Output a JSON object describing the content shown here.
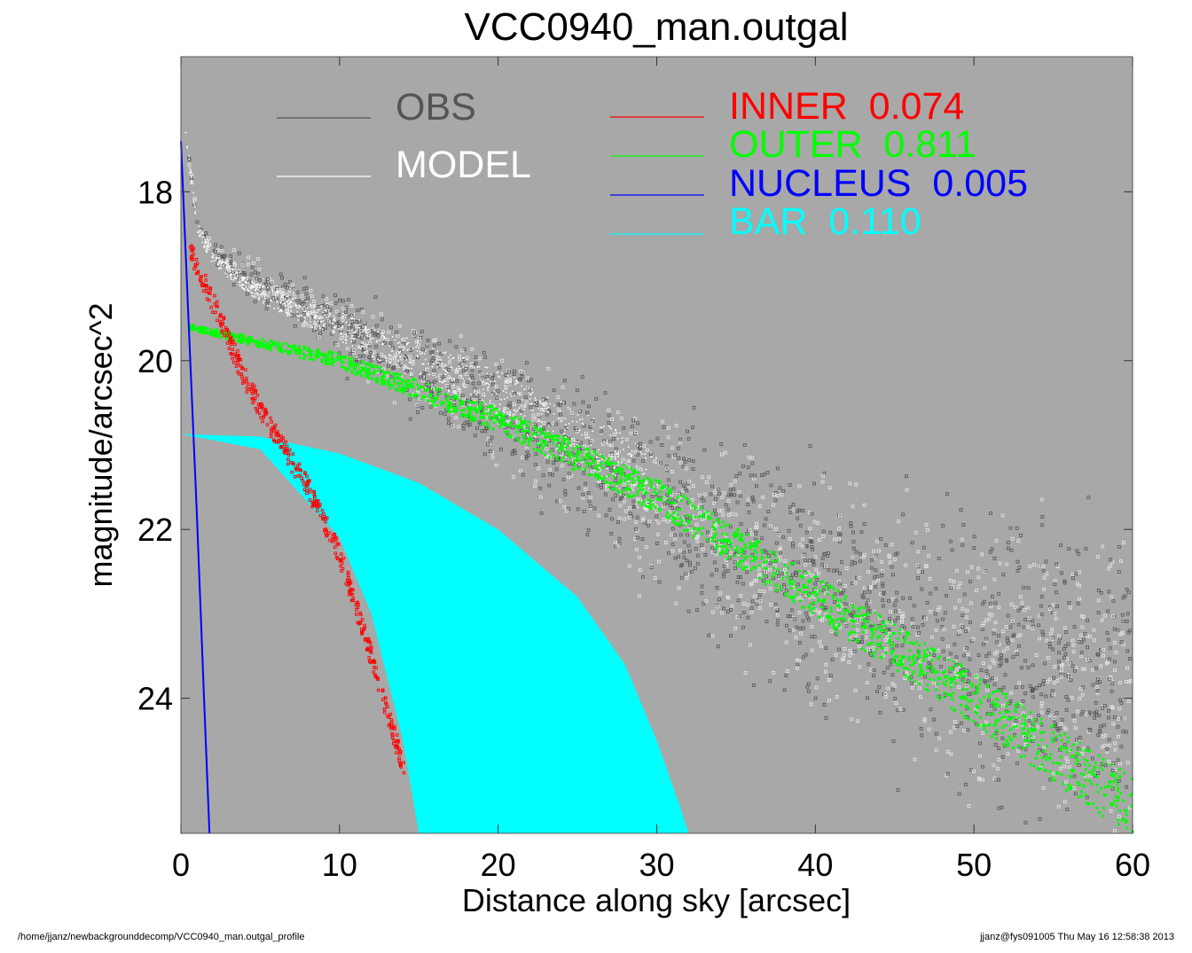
{
  "colors": {
    "plot_bg": "#a8a8a8",
    "obs": "#555555",
    "model": "#ffffff",
    "inner": "#ff0000",
    "outer": "#00ff00",
    "nucleus": "#0000ff",
    "bar": "#00ffff"
  },
  "chart_data": {
    "type": "scatter",
    "title": "VCC0940_man.outgal",
    "xlabel": "Distance along sky [arcsec]",
    "ylabel": "magnitude/arcsec^2",
    "xlim": [
      0,
      60
    ],
    "ylim": [
      25.6,
      16.4
    ],
    "y_inverted": true,
    "xticks": [
      "0",
      "10",
      "20",
      "30",
      "40",
      "50",
      "60"
    ],
    "yticks": [
      "18",
      "20",
      "22",
      "24"
    ],
    "grid": false,
    "legend_placement": "top",
    "legend": [
      {
        "label": "OBS",
        "color": "#555555"
      },
      {
        "label": "MODEL",
        "color": "#ffffff"
      },
      {
        "label": "INNER  0.074",
        "color": "#ff0000"
      },
      {
        "label": "OUTER  0.811",
        "color": "#00ff00"
      },
      {
        "label": "NUCLEUS  0.005",
        "color": "#0000ff"
      },
      {
        "label": "BAR  0.110",
        "color": "#00ffff"
      }
    ],
    "series": [
      {
        "name": "OBS",
        "sample_x": [
          0.2,
          1.0,
          2.0,
          5.0,
          10.0,
          15.0,
          20.0,
          25.0,
          30.0,
          35.0,
          40.0,
          50.0,
          60.0
        ],
        "sample_y": [
          17.2,
          18.3,
          18.7,
          19.1,
          19.6,
          20.1,
          20.6,
          21.1,
          21.7,
          22.2,
          22.7,
          23.5,
          24.0
        ]
      },
      {
        "name": "MODEL",
        "sample_x": [
          0.3,
          1.0,
          2.0,
          5.0,
          10.0,
          15.0,
          20.0,
          25.0,
          30.0
        ],
        "sample_y": [
          17.3,
          18.4,
          18.8,
          19.2,
          19.6,
          20.0,
          20.4,
          20.9,
          21.5
        ]
      },
      {
        "name": "INNER",
        "sample_x": [
          0.6,
          2.0,
          4.0,
          6.0,
          8.0,
          10.0,
          12.0,
          14.0
        ],
        "sample_y": [
          18.7,
          19.3,
          20.2,
          20.9,
          21.5,
          22.3,
          23.5,
          24.8
        ]
      },
      {
        "name": "OUTER",
        "sample_x": [
          0.5,
          10.0,
          20.0,
          30.0,
          40.0,
          50.0,
          60.0
        ],
        "sample_y": [
          19.6,
          20.0,
          20.7,
          21.6,
          22.8,
          24.0,
          25.3
        ]
      },
      {
        "name": "NUCLEUS",
        "sample_x": [
          0.0,
          0.5,
          1.0,
          1.5,
          1.8
        ],
        "sample_y": [
          17.4,
          19.6,
          21.8,
          24.2,
          25.6
        ]
      },
      {
        "name": "BAR",
        "sample_x": [
          0.0,
          5.0,
          10.0,
          15.0,
          20.0,
          25.0,
          28.0,
          30.0,
          31.5,
          32.0
        ],
        "sample_y": [
          20.87,
          20.9,
          21.1,
          21.45,
          22.0,
          22.8,
          23.6,
          24.5,
          25.3,
          25.6
        ],
        "lower_bound_x": [
          0.0,
          5.0,
          10.0,
          12.0,
          14.0,
          15.0
        ],
        "lower_bound_y": [
          20.87,
          21.05,
          22.1,
          23.0,
          24.5,
          25.6
        ]
      }
    ]
  },
  "footer": {
    "left": "/home/jjanz/newbackgrounddecomp/VCC0940_man.outgal_profile",
    "right": "jjanz@fys091005  Thu May 16 12:58:38 2013"
  }
}
